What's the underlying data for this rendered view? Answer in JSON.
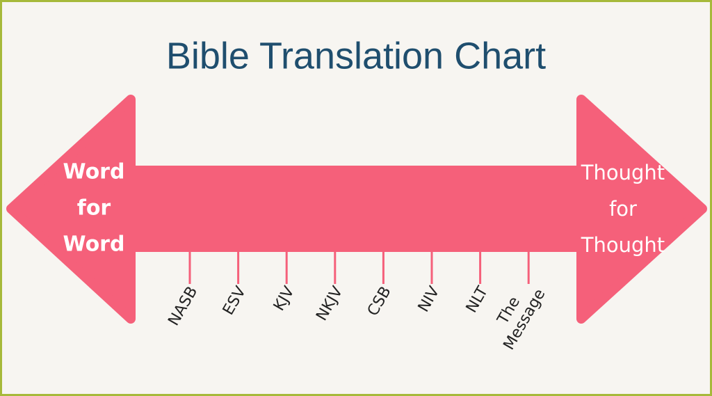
{
  "title": "Bible Translation Chart",
  "left_label": [
    "Word",
    "for",
    "Word"
  ],
  "right_label": [
    "Thought",
    "for",
    "Thought"
  ],
  "translations": [
    [
      "NASB"
    ],
    [
      "ESV"
    ],
    [
      "KJV"
    ],
    [
      "NKJV"
    ],
    [
      "CSB"
    ],
    [
      "NIV"
    ],
    [
      "NLT"
    ],
    [
      "The",
      "Message"
    ]
  ]
}
